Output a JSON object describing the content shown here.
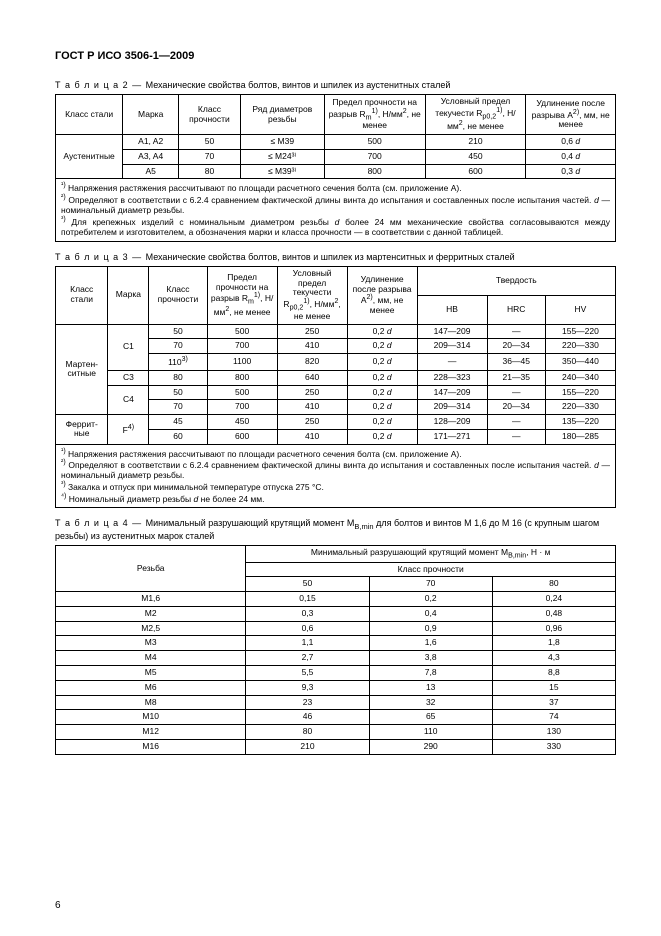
{
  "doc_title": "ГОСТ Р ИСО 3506-1—2009",
  "page_number": "6",
  "table2": {
    "caption_prefix": "Т а б л и ц а  2 — ",
    "caption": "Механические свойства болтов, винтов и шпилек из аустенитных сталей",
    "headers": [
      "Класс стали",
      "Марка",
      "Класс прочности",
      "Ряд диаметров резьбы",
      "Предел прочности на разрыв Rₘ¹⁾, Н/мм², не менее",
      "Условный предел текучести R_{p0,2}¹⁾, Н/мм², не менее",
      "Удлинение после разрыва A²⁾, мм, не менее"
    ],
    "group_label": "Аустенитные",
    "rows": [
      [
        "A1, A2",
        "50",
        "≤ M39",
        "500",
        "210",
        "0,6 d"
      ],
      [
        "A3, A4",
        "70",
        "≤ M24³⁾",
        "700",
        "450",
        "0,4 d"
      ],
      [
        "A5",
        "80",
        "≤ M39³⁾",
        "800",
        "600",
        "0,3 d"
      ]
    ],
    "notes": [
      "¹⁾ Напряжения растяжения рассчитывают по площади расчетного сечения болта (см. приложение A).",
      "²⁾ Определяют в соответствии с 6.2.4 сравнением фактической длины винта до испытания и составленных после испытания частей. d — номинальный диаметр резьбы.",
      "³⁾ Для крепежных изделий с номинальным диаметром резьбы d более 24 мм механические свойства согласовываются между потребителем и изготовителем, а обозначения марки и класса прочности — в соответствии с данной таблицей."
    ]
  },
  "table3": {
    "caption_prefix": "Т а б л и ц а  3 — ",
    "caption": "Механические свойства болтов, винтов и шпилек из мартенситных и ферритных сталей",
    "headers_row1": [
      "Класс стали",
      "Марка",
      "Класс прочности",
      "Предел прочности на разрыв Rₘ¹⁾, Н/мм², не менее",
      "Условный предел текучести R_{p0,2}¹⁾, Н/мм², не менее",
      "Удлинение после разрыва A²⁾, мм, не менее",
      "Твердость"
    ],
    "hardness_headers": [
      "HB",
      "HRC",
      "HV"
    ],
    "group1": "Мартен-ситные",
    "group2": "Феррит-ные",
    "rows": [
      {
        "g": "m",
        "mark": "C1",
        "mark_span": 3,
        "cells": [
          "50",
          "500",
          "250",
          "0,2 d",
          "147—209",
          "—",
          "155—220"
        ]
      },
      {
        "g": "m",
        "cells": [
          "70",
          "700",
          "410",
          "0,2 d",
          "209—314",
          "20—34",
          "220—330"
        ]
      },
      {
        "g": "m",
        "cells": [
          "110³⁾",
          "1100",
          "820",
          "0,2 d",
          "—",
          "36—45",
          "350—440"
        ]
      },
      {
        "g": "m",
        "mark": "C3",
        "mark_span": 1,
        "cells": [
          "80",
          "800",
          "640",
          "0,2 d",
          "228—323",
          "21—35",
          "240—340"
        ]
      },
      {
        "g": "m",
        "mark": "C4",
        "mark_span": 2,
        "cells": [
          "50",
          "500",
          "250",
          "0,2 d",
          "147—209",
          "—",
          "155—220"
        ]
      },
      {
        "g": "m",
        "cells": [
          "70",
          "700",
          "410",
          "0,2 d",
          "209—314",
          "20—34",
          "220—330"
        ]
      },
      {
        "g": "f",
        "mark": "F⁴⁾",
        "mark_span": 2,
        "cells": [
          "45",
          "450",
          "250",
          "0,2 d",
          "128—209",
          "—",
          "135—220"
        ]
      },
      {
        "g": "f",
        "cells": [
          "60",
          "600",
          "410",
          "0,2 d",
          "171—271",
          "—",
          "180—285"
        ]
      }
    ],
    "notes": [
      "¹⁾ Напряжения растяжения рассчитывают по площади расчетного сечения болта (см. приложение A).",
      "²⁾ Определяют в соответствии с 6.2.4 сравнением фактической длины винта до испытания и составленных после испытания частей. d — номинальный диаметр резьбы.",
      "³⁾ Закалка и отпуск при минимальной температуре отпуска 275 °C.",
      "⁴⁾ Номинальный диаметр резьбы d не более 24 мм."
    ]
  },
  "table4": {
    "caption_prefix": "Т а б л и ц а  4 — ",
    "caption": "Минимальный разрушающий крутящий момент M_{B,min} для болтов и винтов М 1,6 до М 16 (с крупным шагом резьбы) из аустенитных марок сталей",
    "col1_header": "Резьба",
    "main_header": "Минимальный разрушающий крутящий момент M_{B,min}, Н · м",
    "sub_header": "Класс прочности",
    "strength_cols": [
      "50",
      "70",
      "80"
    ],
    "rows": [
      [
        "M1,6",
        "0,15",
        "0,2",
        "0,24"
      ],
      [
        "M2",
        "0,3",
        "0,4",
        "0,48"
      ],
      [
        "M2,5",
        "0,6",
        "0,9",
        "0,96"
      ],
      [
        "M3",
        "1,1",
        "1,6",
        "1,8"
      ],
      [
        "M4",
        "2,7",
        "3,8",
        "4,3"
      ],
      [
        "M5",
        "5,5",
        "7,8",
        "8,8"
      ],
      [
        "M6",
        "9,3",
        "13",
        "15"
      ],
      [
        "M8",
        "23",
        "32",
        "37"
      ],
      [
        "M10",
        "46",
        "65",
        "74"
      ],
      [
        "M12",
        "80",
        "110",
        "130"
      ],
      [
        "M16",
        "210",
        "290",
        "330"
      ]
    ]
  }
}
